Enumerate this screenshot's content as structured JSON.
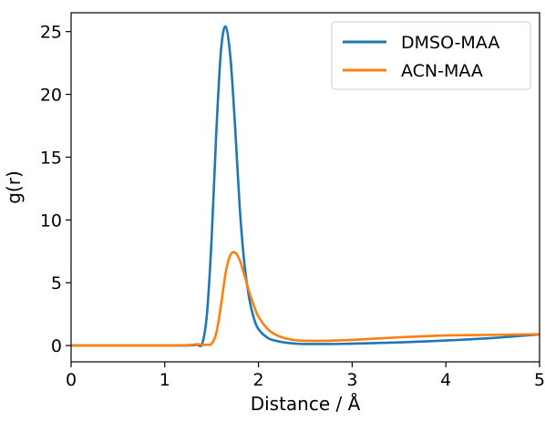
{
  "chart_data": {
    "type": "line",
    "title": "",
    "xlabel": "Distance / Å",
    "ylabel": "g(r)",
    "xlim": [
      0,
      5
    ],
    "ylim": [
      -1.3,
      26.5
    ],
    "xticks": [
      0,
      1,
      2,
      3,
      4,
      5
    ],
    "yticks": [
      0,
      5,
      10,
      15,
      20,
      25
    ],
    "grid": false,
    "legend_position": "top-right",
    "series": [
      {
        "name": "DMSO-MAA",
        "color": "#1f77b4",
        "x": [
          0,
          0.5,
          1.0,
          1.2,
          1.3,
          1.35,
          1.4,
          1.45,
          1.5,
          1.55,
          1.6,
          1.65,
          1.7,
          1.75,
          1.8,
          1.85,
          1.9,
          1.95,
          2.0,
          2.1,
          2.2,
          2.3,
          2.4,
          2.5,
          2.75,
          3.0,
          3.5,
          4.0,
          4.5,
          5.0
        ],
        "y": [
          0,
          0,
          0,
          0,
          0.03,
          0.05,
          0.15,
          2.5,
          8.5,
          17.0,
          23.5,
          25.4,
          23.0,
          17.5,
          11.0,
          6.5,
          3.8,
          2.2,
          1.3,
          0.6,
          0.35,
          0.22,
          0.15,
          0.12,
          0.12,
          0.15,
          0.25,
          0.4,
          0.6,
          0.88
        ]
      },
      {
        "name": "ACN-MAA",
        "color": "#ff7f0e",
        "x": [
          0,
          0.5,
          1.0,
          1.25,
          1.35,
          1.4,
          1.45,
          1.5,
          1.55,
          1.6,
          1.65,
          1.7,
          1.75,
          1.8,
          1.85,
          1.9,
          1.95,
          2.0,
          2.1,
          2.2,
          2.3,
          2.4,
          2.5,
          2.75,
          3.0,
          3.5,
          4.0,
          4.5,
          5.0
        ],
        "y": [
          0,
          0,
          0,
          0.03,
          0.1,
          0.05,
          0.06,
          0.15,
          1.0,
          3.2,
          5.8,
          7.2,
          7.4,
          6.8,
          5.6,
          4.3,
          3.2,
          2.3,
          1.3,
          0.8,
          0.55,
          0.42,
          0.38,
          0.38,
          0.45,
          0.65,
          0.8,
          0.85,
          0.9
        ]
      }
    ]
  }
}
